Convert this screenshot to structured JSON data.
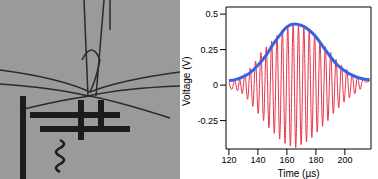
{
  "chart_data": {
    "type": "line",
    "x_label": "Time (µs)",
    "y_label": "Voltage (V)",
    "xlim": [
      118,
      218
    ],
    "xticks": [
      120,
      140,
      160,
      180,
      200
    ],
    "ylim": [
      -0.45,
      0.55
    ],
    "yticks": [
      -0.25,
      0,
      0.25,
      0.5
    ],
    "grid": false,
    "series": [
      {
        "color": "#e8334a",
        "x": [
          120,
          122,
          124,
          126,
          127.5,
          129.2,
          131,
          132.9,
          134.7,
          136.5,
          138.4,
          140.2,
          142.1,
          143.9,
          145.8,
          147.6,
          149.5,
          151.3,
          153.2,
          155,
          156.9,
          158.7,
          160.6,
          162.4,
          164.3,
          166.1,
          168,
          169.8,
          171.7,
          173.5,
          175.4,
          177.2,
          179.1,
          180.9,
          182.8,
          184.6,
          186.5,
          188.3,
          190.2,
          192,
          193.9,
          195.7,
          197.6,
          199.4,
          201.3,
          203.1,
          205,
          206.8,
          208.7,
          210.5,
          212.4,
          214.5,
          217
        ],
        "values": [
          0.02,
          -0.03,
          0.03,
          -0.04,
          0.04,
          -0.06,
          0.08,
          -0.1,
          0.12,
          -0.15,
          0.17,
          -0.2,
          0.23,
          -0.25,
          0.27,
          -0.3,
          0.31,
          -0.34,
          0.35,
          -0.38,
          0.39,
          -0.41,
          0.41,
          -0.43,
          0.43,
          -0.44,
          0.42,
          -0.42,
          0.41,
          -0.4,
          0.38,
          -0.37,
          0.35,
          -0.33,
          0.31,
          -0.29,
          0.27,
          -0.25,
          0.23,
          -0.2,
          0.18,
          -0.16,
          0.14,
          -0.12,
          0.11,
          -0.09,
          0.08,
          -0.06,
          0.06,
          -0.03,
          0.04,
          0.02,
          0.03
        ]
      },
      {
        "color": "#3a62e0",
        "x": [
          120,
          125,
          130,
          135,
          140,
          145,
          150,
          155,
          160,
          165,
          170,
          175,
          180,
          185,
          190,
          195,
          200,
          205,
          210,
          215,
          217
        ],
        "values": [
          0.03,
          0.04,
          0.06,
          0.09,
          0.14,
          0.2,
          0.28,
          0.35,
          0.41,
          0.43,
          0.42,
          0.39,
          0.34,
          0.27,
          0.2,
          0.14,
          0.1,
          0.07,
          0.05,
          0.04,
          0.04
        ]
      }
    ]
  }
}
